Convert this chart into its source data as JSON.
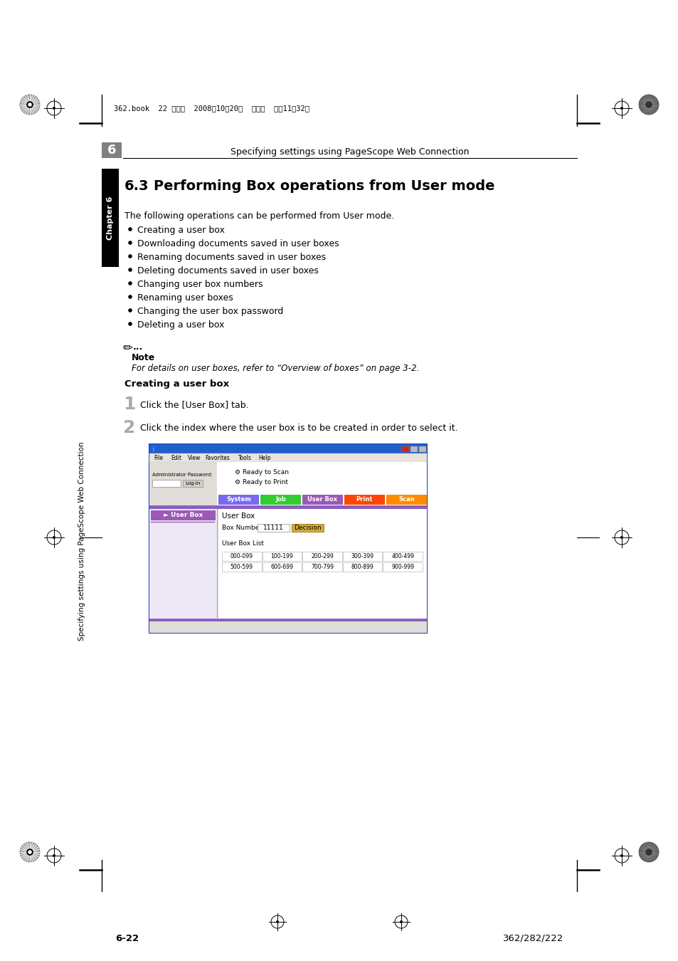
{
  "page_bg": "#ffffff",
  "header_text": "Specifying settings using PageScope Web Connection",
  "chapter_num": "6",
  "chapter_label": "Chapter 6",
  "section_num": "6.3",
  "section_title": "Performing Box operations from User mode",
  "intro_text": "The following operations can be performed from User mode.",
  "bullet_items": [
    "Creating a user box",
    "Downloading documents saved in user boxes",
    "Renaming documents saved in user boxes",
    "Deleting documents saved in user boxes",
    "Changing user box numbers",
    "Renaming user boxes",
    "Changing the user box password",
    "Deleting a user box"
  ],
  "note_label": "Note",
  "note_text": "For details on user boxes, refer to “Overview of boxes” on page 3-2.",
  "subsection_title": "Creating a user box",
  "step1_num": "1",
  "step1_text": "Click the [User Box] tab.",
  "step2_num": "2",
  "step2_text": "Click the index where the user box is to be created in order to select it.",
  "footer_left": "6-22",
  "footer_right": "362/282/222",
  "header_book_text": "362.book  22 ページ  2008年10月20日  月曜日  午前11時32分",
  "sidebar_text": "Specifying settings using PageScope Web Connection",
  "nav_buttons": [
    "System",
    "Job",
    "User Box",
    "Print",
    "Scan"
  ],
  "nav_colors": [
    "#7B68EE",
    "#32CD32",
    "#9B59B6",
    "#FF4500",
    "#FF8C00"
  ],
  "box_ranges_row1": [
    "000-099",
    "100-199",
    "200-299",
    "300-399",
    "400-499"
  ],
  "box_ranges_row2": [
    "500-599",
    "600-699",
    "700-799",
    "800-899",
    "900-999"
  ]
}
